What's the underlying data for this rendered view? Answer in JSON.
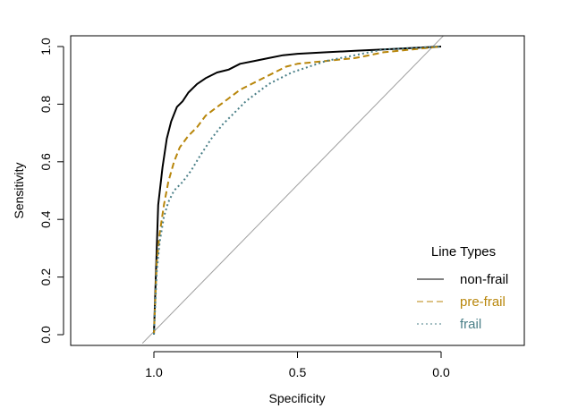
{
  "chart_data": {
    "type": "line",
    "title": "",
    "xlabel": "Specificity",
    "ylabel": "Sensitivity",
    "x_reversed": true,
    "xlim": [
      1.3,
      -0.3
    ],
    "ylim": [
      0,
      1
    ],
    "xticks": [
      {
        "value": 1.0,
        "label": "1.0"
      },
      {
        "value": 0.5,
        "label": "0.5"
      },
      {
        "value": 0.0,
        "label": "0.0"
      }
    ],
    "yticks": [
      {
        "value": 0.0,
        "label": "0.0"
      },
      {
        "value": 0.2,
        "label": "0.2"
      },
      {
        "value": 0.4,
        "label": "0.4"
      },
      {
        "value": 0.6,
        "label": "0.6"
      },
      {
        "value": 0.8,
        "label": "0.8"
      },
      {
        "value": 1.0,
        "label": "1.0"
      }
    ],
    "grid": false,
    "legend": {
      "title": "Line Types",
      "position": "bottom-right"
    },
    "reference_line": {
      "color": "#a0a0a0",
      "points": [
        [
          1.04,
          -0.03
        ],
        [
          -0.04,
          1.07
        ]
      ]
    },
    "series": [
      {
        "name": "non-frail",
        "color": "#000000",
        "dash": "solid",
        "points": [
          [
            1.0,
            0.0
          ],
          [
            0.99,
            0.3
          ],
          [
            0.985,
            0.45
          ],
          [
            0.97,
            0.58
          ],
          [
            0.955,
            0.68
          ],
          [
            0.94,
            0.74
          ],
          [
            0.92,
            0.79
          ],
          [
            0.9,
            0.81
          ],
          [
            0.88,
            0.84
          ],
          [
            0.85,
            0.87
          ],
          [
            0.82,
            0.89
          ],
          [
            0.78,
            0.91
          ],
          [
            0.74,
            0.92
          ],
          [
            0.7,
            0.94
          ],
          [
            0.65,
            0.95
          ],
          [
            0.6,
            0.96
          ],
          [
            0.55,
            0.97
          ],
          [
            0.5,
            0.975
          ],
          [
            0.4,
            0.98
          ],
          [
            0.3,
            0.985
          ],
          [
            0.2,
            0.99
          ],
          [
            0.1,
            0.995
          ],
          [
            0.0,
            1.0
          ]
        ]
      },
      {
        "name": "pre-frail",
        "color": "#b8860b",
        "dash": "dashed",
        "points": [
          [
            1.0,
            0.0
          ],
          [
            0.99,
            0.25
          ],
          [
            0.98,
            0.35
          ],
          [
            0.965,
            0.45
          ],
          [
            0.95,
            0.53
          ],
          [
            0.93,
            0.6
          ],
          [
            0.91,
            0.65
          ],
          [
            0.88,
            0.69
          ],
          [
            0.85,
            0.72
          ],
          [
            0.82,
            0.76
          ],
          [
            0.78,
            0.79
          ],
          [
            0.74,
            0.82
          ],
          [
            0.7,
            0.85
          ],
          [
            0.66,
            0.87
          ],
          [
            0.62,
            0.89
          ],
          [
            0.58,
            0.91
          ],
          [
            0.54,
            0.93
          ],
          [
            0.5,
            0.94
          ],
          [
            0.4,
            0.95
          ],
          [
            0.3,
            0.96
          ],
          [
            0.25,
            0.97
          ],
          [
            0.2,
            0.98
          ],
          [
            0.1,
            0.99
          ],
          [
            0.0,
            1.0
          ]
        ]
      },
      {
        "name": "frail",
        "color": "#4a7f87",
        "dash": "dotted",
        "points": [
          [
            1.0,
            0.0
          ],
          [
            0.99,
            0.22
          ],
          [
            0.98,
            0.32
          ],
          [
            0.965,
            0.41
          ],
          [
            0.95,
            0.46
          ],
          [
            0.93,
            0.5
          ],
          [
            0.9,
            0.53
          ],
          [
            0.87,
            0.57
          ],
          [
            0.84,
            0.62
          ],
          [
            0.8,
            0.68
          ],
          [
            0.76,
            0.73
          ],
          [
            0.72,
            0.77
          ],
          [
            0.68,
            0.81
          ],
          [
            0.64,
            0.84
          ],
          [
            0.6,
            0.87
          ],
          [
            0.56,
            0.89
          ],
          [
            0.52,
            0.91
          ],
          [
            0.46,
            0.93
          ],
          [
            0.4,
            0.95
          ],
          [
            0.35,
            0.96
          ],
          [
            0.3,
            0.97
          ],
          [
            0.2,
            0.99
          ],
          [
            0.1,
            0.995
          ],
          [
            0.0,
            1.0
          ]
        ]
      }
    ]
  }
}
